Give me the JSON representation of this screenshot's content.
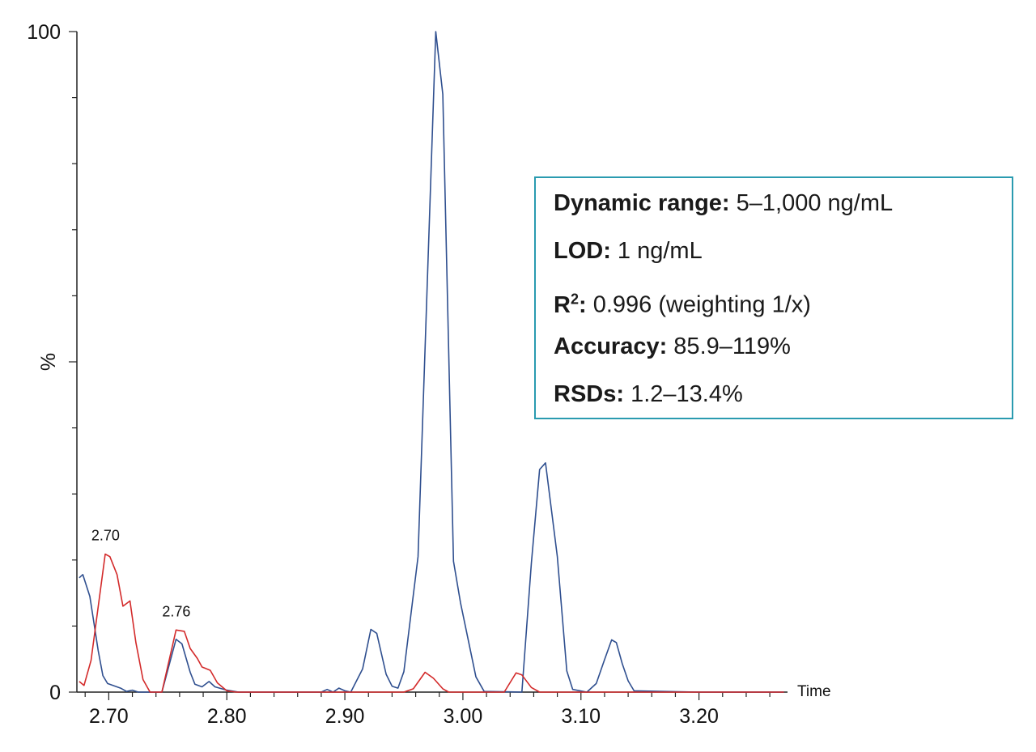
{
  "chart_data": {
    "type": "line",
    "xlabel": "Time",
    "ylabel": "%",
    "xlim": [
      2.673,
      3.275
    ],
    "ylim": [
      0,
      100
    ],
    "x_ticks": [
      2.7,
      2.8,
      2.9,
      3.0,
      3.1,
      3.2
    ],
    "x_tick_labels": [
      "2.70",
      "2.80",
      "2.90",
      "3.00",
      "3.10",
      "3.20"
    ],
    "y_tick_labels": [
      "0",
      "100"
    ],
    "grid": false,
    "colors": {
      "blue": "#2f4f8f",
      "red": "#d32a2a",
      "box_border": "#2a9bb0"
    },
    "series": [
      {
        "color": "#2f4f8f",
        "points": [
          [
            2.675,
            17.3
          ],
          [
            2.678,
            17.8
          ],
          [
            2.684,
            14.5
          ],
          [
            2.691,
            6.3
          ],
          [
            2.695,
            2.5
          ],
          [
            2.699,
            1.3
          ],
          [
            2.71,
            0.6
          ],
          [
            2.715,
            0.1
          ],
          [
            2.72,
            0.3
          ],
          [
            2.725,
            0
          ],
          [
            2.735,
            0
          ],
          [
            2.745,
            0
          ],
          [
            2.757,
            8
          ],
          [
            2.762,
            7.3
          ],
          [
            2.769,
            3
          ],
          [
            2.773,
            1.2
          ],
          [
            2.779,
            0.8
          ],
          [
            2.785,
            1.6
          ],
          [
            2.79,
            0.8
          ],
          [
            2.8,
            0.3
          ],
          [
            2.81,
            0
          ],
          [
            2.85,
            0
          ],
          [
            2.88,
            0
          ],
          [
            2.885,
            0.4
          ],
          [
            2.89,
            0
          ],
          [
            2.895,
            0.6
          ],
          [
            2.9,
            0.2
          ],
          [
            2.905,
            0
          ],
          [
            2.915,
            3.5
          ],
          [
            2.922,
            9.5
          ],
          [
            2.927,
            8.9
          ],
          [
            2.935,
            2.7
          ],
          [
            2.94,
            0.9
          ],
          [
            2.945,
            0.6
          ],
          [
            2.95,
            3.1
          ],
          [
            2.962,
            20.5
          ],
          [
            2.977,
            100
          ],
          [
            2.983,
            90.5
          ],
          [
            2.992,
            19.8
          ],
          [
            2.998,
            13.5
          ],
          [
            3.011,
            2.3
          ],
          [
            3.018,
            0.1
          ],
          [
            3.05,
            0
          ],
          [
            3.058,
            19.5
          ],
          [
            3.065,
            33.7
          ],
          [
            3.07,
            34.7
          ],
          [
            3.08,
            20.5
          ],
          [
            3.088,
            3.2
          ],
          [
            3.093,
            0.4
          ],
          [
            3.105,
            0
          ],
          [
            3.113,
            1.3
          ],
          [
            3.12,
            4.9
          ],
          [
            3.126,
            7.9
          ],
          [
            3.13,
            7.5
          ],
          [
            3.135,
            4.3
          ],
          [
            3.14,
            1.7
          ],
          [
            3.145,
            0.2
          ],
          [
            3.2,
            0
          ],
          [
            3.272,
            0
          ]
        ]
      },
      {
        "color": "#d32a2a",
        "points": [
          [
            2.675,
            1.6
          ],
          [
            2.679,
            1
          ],
          [
            2.685,
            4.8
          ],
          [
            2.697,
            20.9
          ],
          [
            2.701,
            20.5
          ],
          [
            2.707,
            17.8
          ],
          [
            2.712,
            13
          ],
          [
            2.718,
            13.8
          ],
          [
            2.723,
            7.5
          ],
          [
            2.729,
            1.9
          ],
          [
            2.735,
            0
          ],
          [
            2.745,
            0
          ],
          [
            2.757,
            9.4
          ],
          [
            2.764,
            9.2
          ],
          [
            2.769,
            6.6
          ],
          [
            2.775,
            5.1
          ],
          [
            2.779,
            3.8
          ],
          [
            2.786,
            3.3
          ],
          [
            2.792,
            1.4
          ],
          [
            2.8,
            0.2
          ],
          [
            2.808,
            0
          ],
          [
            2.95,
            0
          ],
          [
            2.958,
            0.5
          ],
          [
            2.968,
            3
          ],
          [
            2.975,
            2.1
          ],
          [
            2.983,
            0.5
          ],
          [
            2.988,
            0
          ],
          [
            3.035,
            0
          ],
          [
            3.045,
            2.9
          ],
          [
            3.05,
            2.6
          ],
          [
            3.058,
            0.7
          ],
          [
            3.065,
            0
          ],
          [
            3.272,
            0
          ]
        ]
      }
    ],
    "annotations": [
      {
        "text": "2.70",
        "x": 2.7,
        "y": 20.9
      },
      {
        "text": "2.76",
        "x": 2.76,
        "y": 9.4
      }
    ]
  },
  "info_box": {
    "rows": [
      {
        "label": "Dynamic range:",
        "value": " 5–1,000 ng/mL"
      },
      {
        "label": "LOD:",
        "value": " 1 ng/mL"
      },
      {
        "label": "R",
        "sup": "2",
        "label_suffix": ":",
        "value": " 0.996 (weighting 1/x)"
      },
      {
        "label": "Accuracy:",
        "value": " 85.9–119%"
      },
      {
        "label": "RSDs:",
        "value": " 1.2–13.4%"
      }
    ]
  }
}
